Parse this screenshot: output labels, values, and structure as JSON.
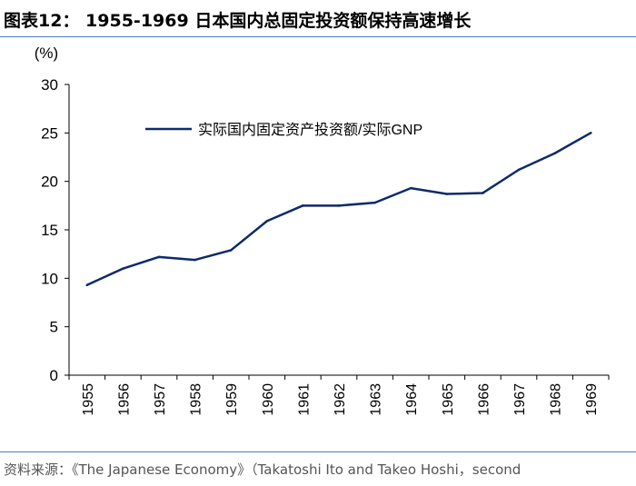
{
  "figure": {
    "title": "图表12： 1955-1969 日本国内总固定投资额保持高速增长",
    "source": "资料来源：《The Japanese Economy》（Takatoshi Ito and Takeo Hoshi，second"
  },
  "colors": {
    "line": "#0d2a6b",
    "axis": "#000000",
    "rule": "#4a7fbf"
  },
  "chart_data": {
    "type": "line",
    "title": "",
    "ylabel": "(%)",
    "xlabel": "",
    "x": [
      "1955",
      "1956",
      "1957",
      "1958",
      "1959",
      "1960",
      "1961",
      "1962",
      "1963",
      "1964",
      "1965",
      "1966",
      "1967",
      "1968",
      "1969"
    ],
    "series": [
      {
        "name": "实际国内固定资产投资额/实际GNP",
        "values": [
          9.3,
          11.0,
          12.2,
          11.9,
          12.9,
          15.9,
          17.5,
          17.5,
          17.8,
          19.3,
          18.7,
          18.8,
          21.2,
          22.9,
          25.0
        ]
      }
    ],
    "ylim": [
      0,
      30
    ],
    "yticks": [
      0,
      5,
      10,
      15,
      20,
      25,
      30
    ],
    "grid": false,
    "legend_position": "top-right"
  }
}
